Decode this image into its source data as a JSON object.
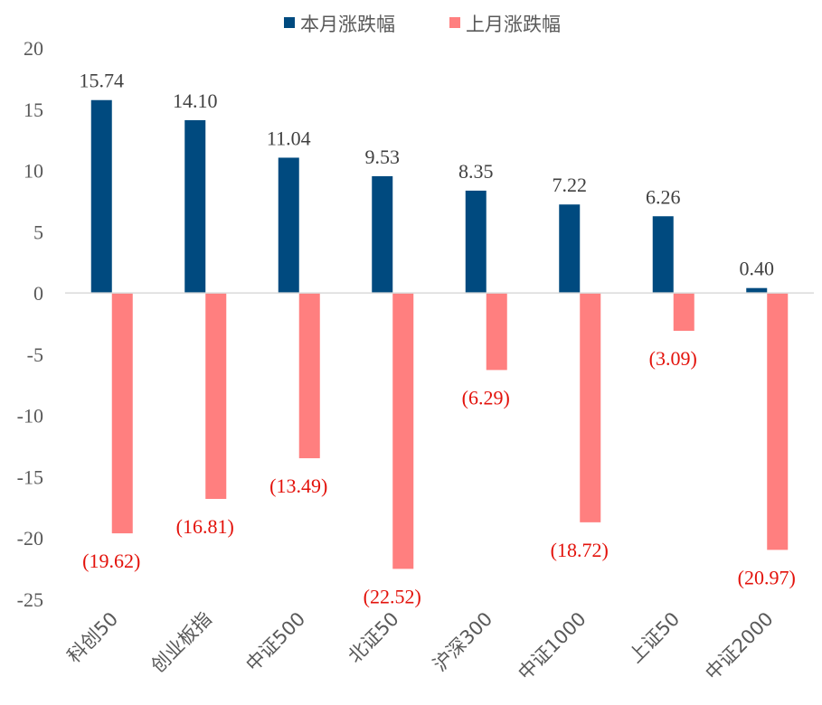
{
  "chart_data": {
    "type": "bar",
    "title": "",
    "xlabel": "",
    "ylabel": "",
    "ylim": [
      -25,
      20
    ],
    "yticks": [
      20,
      15,
      10,
      5,
      0,
      -5,
      -10,
      -15,
      -20,
      -25
    ],
    "categories": [
      "科创50",
      "创业板指",
      "中证500",
      "北证50",
      "沪深300",
      "中证1000",
      "上证50",
      "中证2000"
    ],
    "series": [
      {
        "name": "本月涨跌幅",
        "color": "#004a7f",
        "values": [
          15.74,
          14.1,
          11.04,
          9.53,
          8.35,
          7.22,
          6.26,
          0.4
        ],
        "labels": [
          "15.74",
          "14.10",
          "11.04",
          "9.53",
          "8.35",
          "7.22",
          "6.26",
          "0.40"
        ],
        "label_color": "#404040"
      },
      {
        "name": "上月涨跌幅",
        "color": "#ff7f7f",
        "values": [
          -19.62,
          -16.81,
          -13.49,
          -22.52,
          -6.29,
          -18.72,
          -3.09,
          -20.97
        ],
        "labels": [
          "(19.62)",
          "(16.81)",
          "(13.49)",
          "(22.52)",
          "(6.29)",
          "(18.72)",
          "(3.09)",
          "(20.97)"
        ],
        "label_color": "#e3120b"
      }
    ],
    "legend_position": "top-center",
    "grid": false
  }
}
